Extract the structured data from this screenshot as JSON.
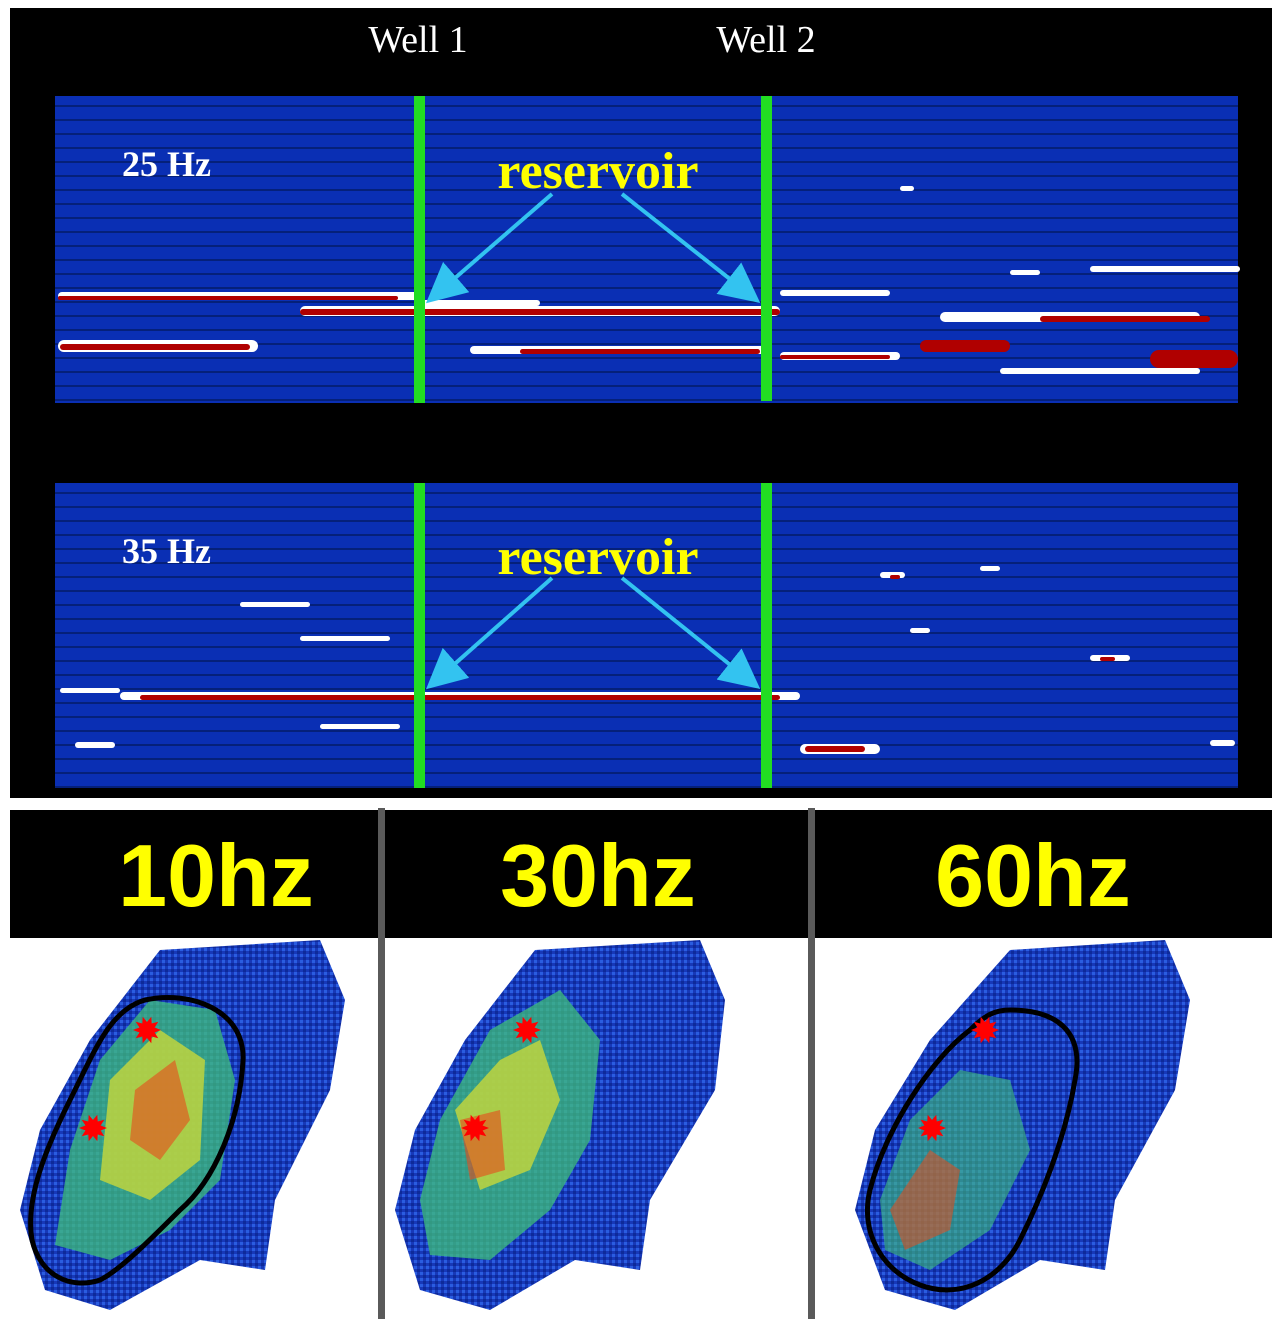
{
  "wells": [
    "Well 1",
    "Well 2"
  ],
  "sections": [
    {
      "freq_label": "25 Hz",
      "annotation": "reservoir"
    },
    {
      "freq_label": "35 Hz",
      "annotation": "reservoir"
    }
  ],
  "maps": [
    {
      "freq_label": "10hz"
    },
    {
      "freq_label": "30hz"
    },
    {
      "freq_label": "60hz"
    }
  ],
  "colors": {
    "section_background": "#0a2fb4",
    "well_line": "#22dd22",
    "reservoir_text": "#ffff00",
    "arrow": "#33c3f0",
    "amplitude_high": "#b00000",
    "amplitude_mid": "#ffffff",
    "map_header_text": "#ffff00",
    "map_header_background": "#000000",
    "panel_divider": "#5a5a5a",
    "well_marker": "#ff0000",
    "outline": "#000000"
  },
  "icons": [
    "well-marker-star-icon",
    "arrow-icon"
  ]
}
